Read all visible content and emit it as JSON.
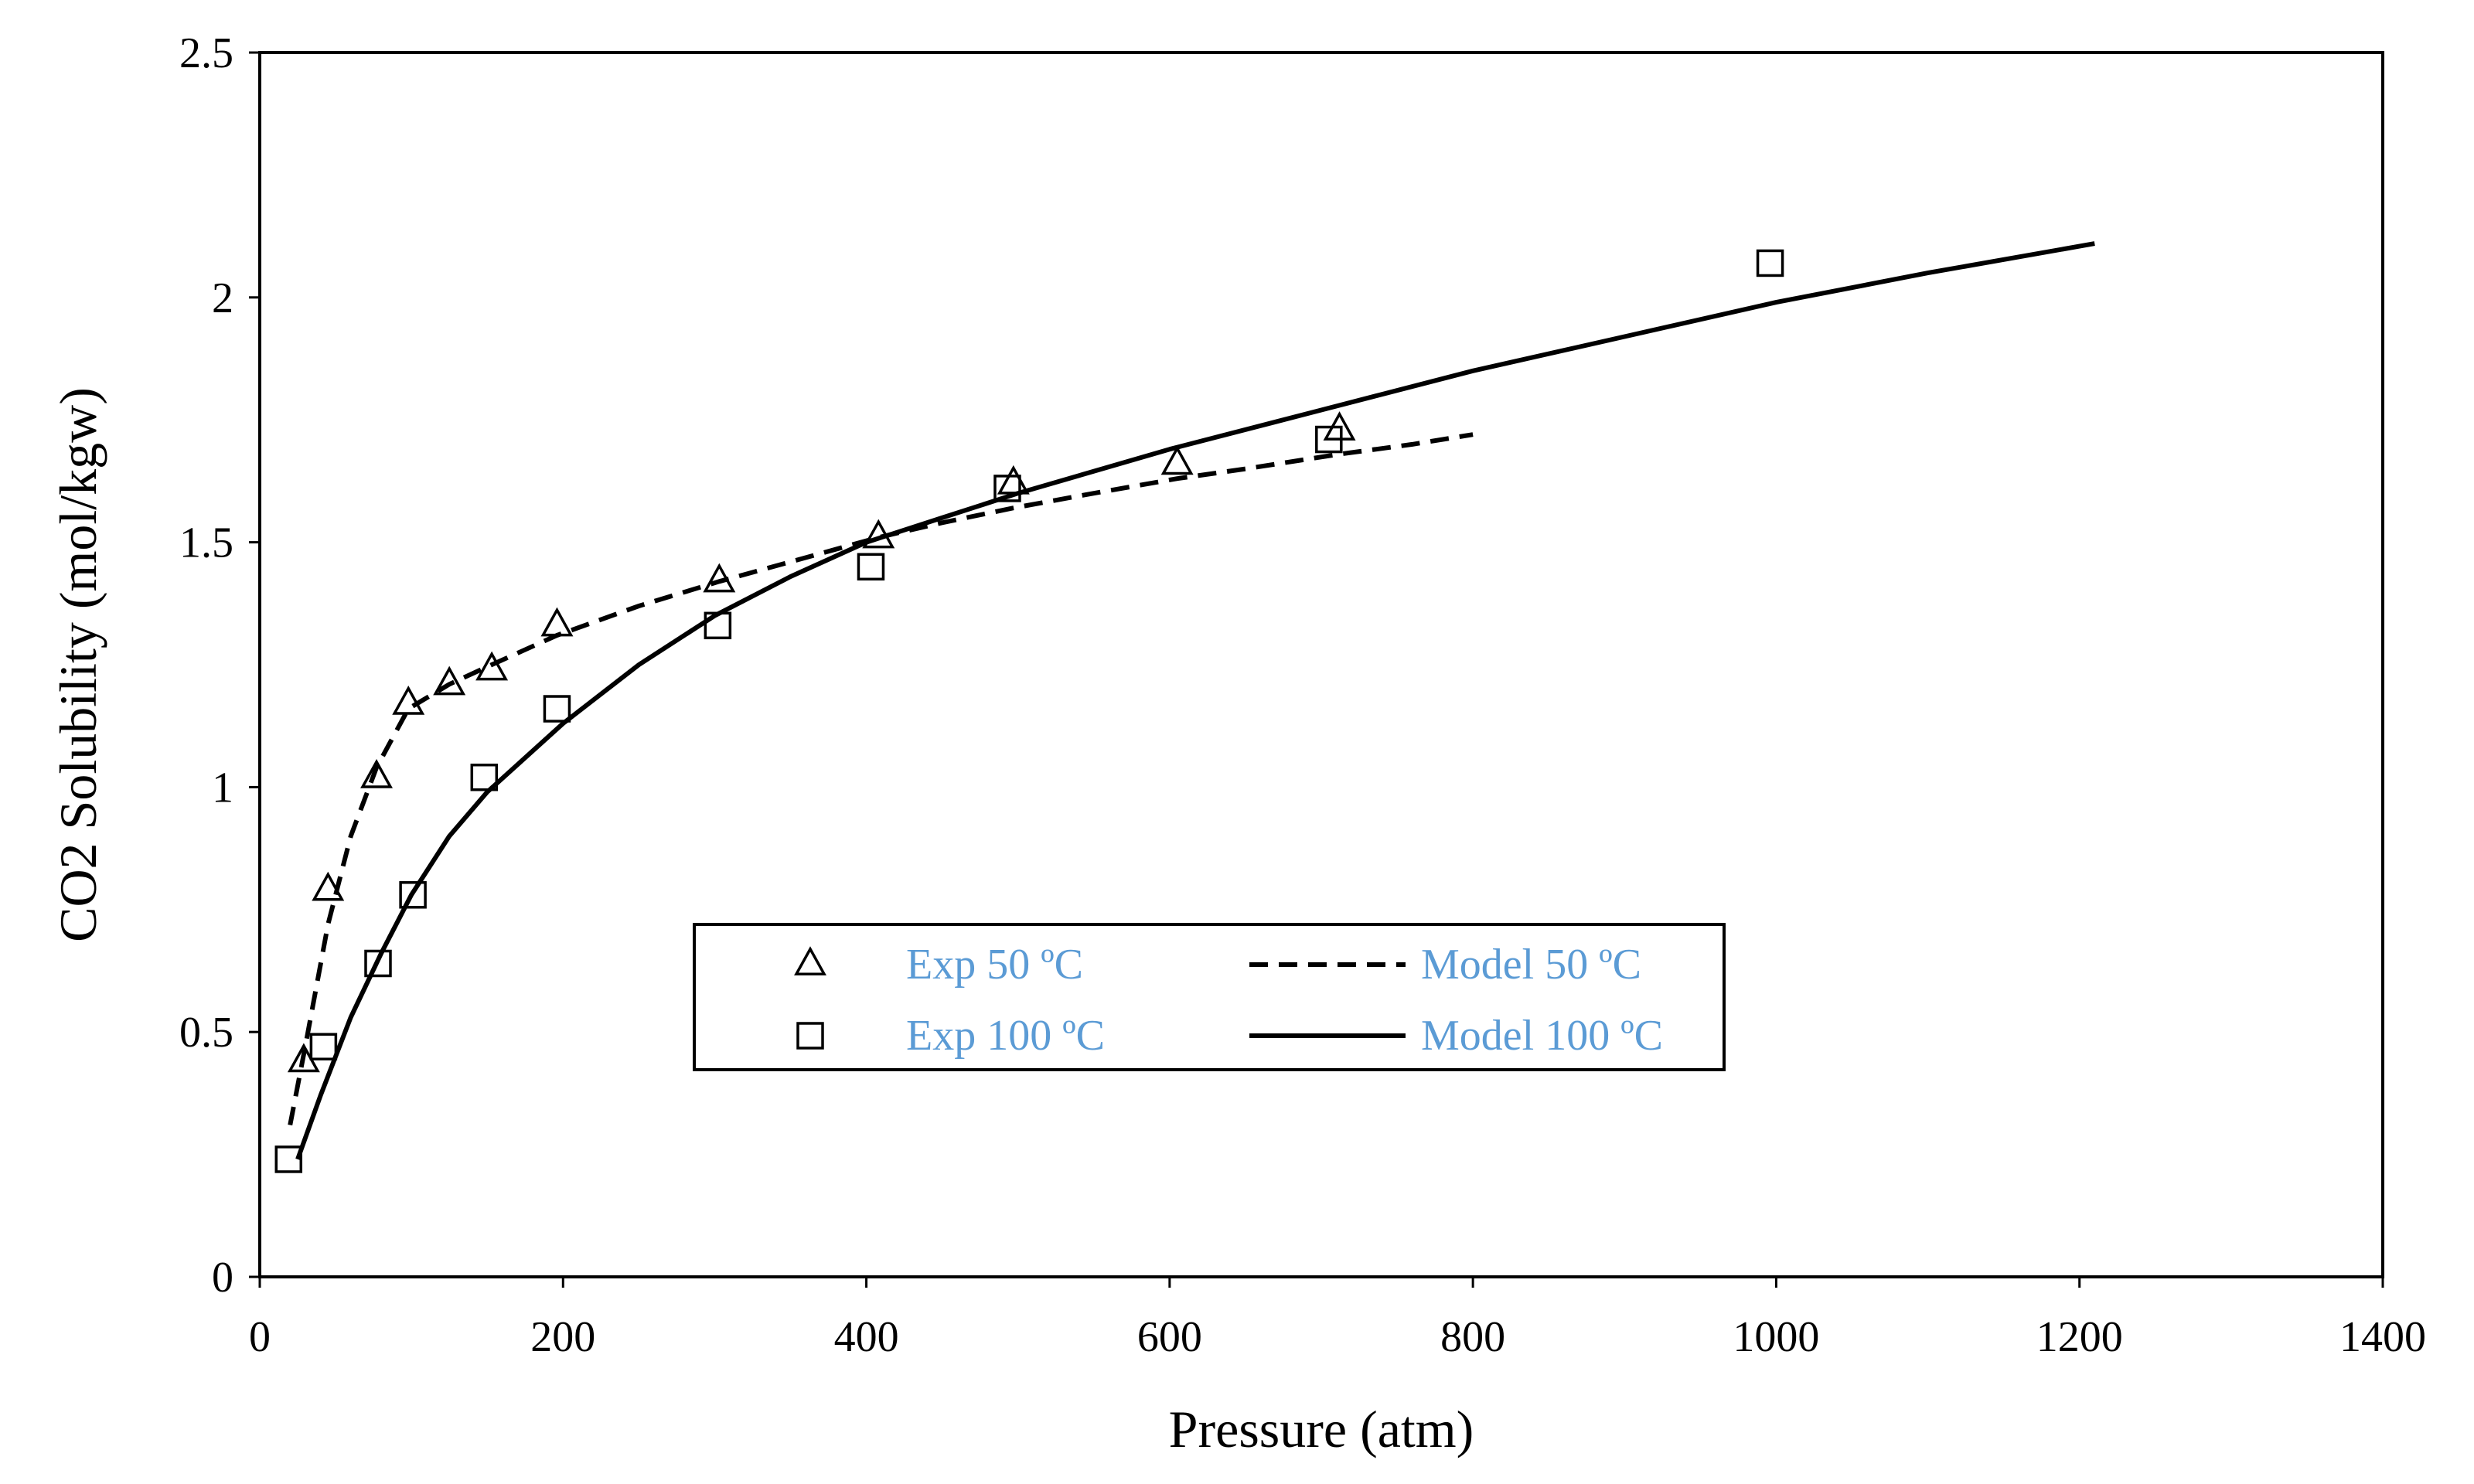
{
  "chart_data": {
    "type": "scatter",
    "title": "",
    "xlabel": "Pressure (atm)",
    "ylabel": "CO2 Solubility (mol/kgw)",
    "xlim": [
      0,
      1400
    ],
    "ylim": [
      0,
      2.5
    ],
    "xticks": [
      0,
      200,
      400,
      600,
      800,
      1000,
      1200,
      1400
    ],
    "xtick_labels": [
      "0",
      "200",
      "400",
      "600",
      "800",
      "1000",
      "1200",
      "1400"
    ],
    "yticks": [
      0,
      0.5,
      1,
      1.5,
      2,
      2.5
    ],
    "ytick_labels": [
      "0",
      "0.5",
      "1",
      "1.5",
      "2",
      "2.5"
    ],
    "grid": false,
    "legend_position": "center",
    "series": [
      {
        "name": "Exp 50 ºC",
        "kind": "marker",
        "marker": "triangle",
        "x": [
          29,
          45,
          77,
          98,
          125,
          153,
          196,
          303,
          408,
          497,
          605,
          712
        ],
        "y": [
          0.44,
          0.79,
          1.02,
          1.17,
          1.21,
          1.24,
          1.33,
          1.42,
          1.51,
          1.62,
          1.66,
          1.73
        ]
      },
      {
        "name": "Model 50 ºC",
        "kind": "line",
        "dash": "dashed",
        "x": [
          20,
          30,
          45,
          60,
          77,
          98,
          125,
          153,
          196,
          250,
          303,
          350,
          408,
          450,
          497,
          550,
          605,
          650,
          712,
          760,
          800
        ],
        "y": [
          0.31,
          0.47,
          0.72,
          0.9,
          1.04,
          1.16,
          1.21,
          1.25,
          1.31,
          1.37,
          1.42,
          1.46,
          1.51,
          1.54,
          1.57,
          1.6,
          1.63,
          1.65,
          1.68,
          1.7,
          1.72
        ]
      },
      {
        "name": "Exp 100 ºC",
        "kind": "marker",
        "marker": "square",
        "x": [
          19,
          42,
          78,
          101,
          148,
          196,
          302,
          403,
          493,
          705,
          996
        ],
        "y": [
          0.24,
          0.47,
          0.64,
          0.78,
          1.02,
          1.16,
          1.33,
          1.45,
          1.61,
          1.71,
          2.07
        ]
      },
      {
        "name": "Model 100 ºC",
        "kind": "line",
        "dash": "solid",
        "x": [
          25,
          40,
          60,
          80,
          100,
          125,
          150,
          200,
          250,
          300,
          350,
          400,
          450,
          500,
          600,
          700,
          800,
          900,
          1000,
          1100,
          1210
        ],
        "y": [
          0.24,
          0.37,
          0.53,
          0.66,
          0.78,
          0.9,
          0.99,
          1.13,
          1.25,
          1.35,
          1.43,
          1.5,
          1.55,
          1.6,
          1.69,
          1.77,
          1.85,
          1.92,
          1.99,
          2.05,
          2.11
        ]
      }
    ]
  }
}
